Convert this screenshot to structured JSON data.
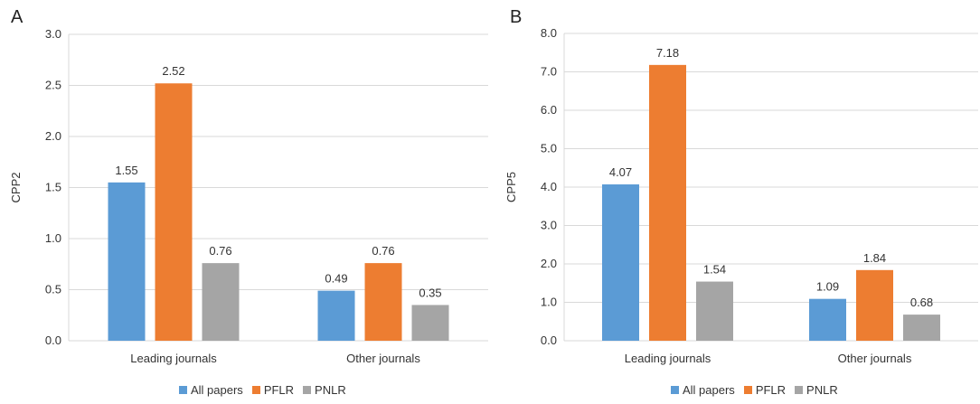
{
  "chart_data": [
    {
      "panel_label": "A",
      "type": "bar",
      "categories": [
        "Leading journals",
        "Other journals"
      ],
      "series": [
        {
          "name": "All papers",
          "values": [
            1.55,
            0.49
          ],
          "color": "#5B9BD5"
        },
        {
          "name": "PFLR",
          "values": [
            2.52,
            0.76
          ],
          "color": "#ED7D31"
        },
        {
          "name": "PNLR",
          "values": [
            0.76,
            0.35
          ],
          "color": "#A5A5A5"
        }
      ],
      "ylabel": "CPP2",
      "ylim": [
        0,
        3.0
      ],
      "yticks": [
        "0.0",
        "0.5",
        "1.0",
        "1.5",
        "2.0",
        "2.5",
        "3.0"
      ],
      "data_labels": [
        [
          "1.55",
          "0.49"
        ],
        [
          "2.52",
          "0.76"
        ],
        [
          "0.76",
          "0.35"
        ]
      ],
      "grid": true,
      "legend_position": "bottom"
    },
    {
      "panel_label": "B",
      "type": "bar",
      "categories": [
        "Leading journals",
        "Other journals"
      ],
      "series": [
        {
          "name": "All papers",
          "values": [
            4.07,
            1.09
          ],
          "color": "#5B9BD5"
        },
        {
          "name": "PFLR",
          "values": [
            7.18,
            1.84
          ],
          "color": "#ED7D31"
        },
        {
          "name": "PNLR",
          "values": [
            1.54,
            0.68
          ],
          "color": "#A5A5A5"
        }
      ],
      "ylabel": "CPP5",
      "ylim": [
        0,
        8.0
      ],
      "yticks": [
        "0.0",
        "1.0",
        "2.0",
        "3.0",
        "4.0",
        "5.0",
        "6.0",
        "7.0",
        "8.0"
      ],
      "data_labels": [
        [
          "4.07",
          "1.09"
        ],
        [
          "7.18",
          "1.84"
        ],
        [
          "1.54",
          "0.68"
        ]
      ],
      "grid": true,
      "legend_position": "bottom"
    }
  ],
  "colors": {
    "grid": "#D9D9D9",
    "axis_text": "#333333"
  }
}
